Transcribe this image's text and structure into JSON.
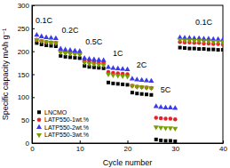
{
  "chart_data": {
    "type": "scatter",
    "x_label": "Cycle number",
    "y_label": "Specific capacity mAh g⁻¹",
    "x": [
      1,
      2,
      3,
      4,
      5,
      6,
      7,
      8,
      9,
      10,
      11,
      12,
      13,
      14,
      15,
      16,
      17,
      18,
      19,
      20,
      21,
      22,
      23,
      24,
      25,
      26,
      27,
      28,
      29,
      30,
      31,
      32,
      33,
      34,
      35,
      36,
      37,
      38,
      39,
      40
    ],
    "xlim": [
      0,
      40
    ],
    "xticks": [
      0,
      10,
      20,
      30,
      40
    ],
    "ylim": [
      0,
      300
    ],
    "yticks": [
      0,
      50,
      100,
      150,
      200,
      250,
      300
    ],
    "legend": "lower left",
    "series": [
      {
        "name": "LNCMO",
        "color": "#000000",
        "marker": "square",
        "values": [
          218,
          215,
          213,
          212,
          211,
          190,
          188,
          187,
          186,
          185,
          168,
          166,
          165,
          164,
          163,
          132,
          130,
          129,
          128,
          127,
          110,
          108,
          107,
          106,
          105,
          8,
          6,
          5,
          5,
          4,
          208,
          207,
          206,
          206,
          205,
          205,
          204,
          204,
          203,
          203
        ]
      },
      {
        "name": "LATP550-1wt.%",
        "color": "#e8202a",
        "marker": "circle",
        "values": [
          225,
          222,
          220,
          219,
          218,
          200,
          198,
          197,
          196,
          195,
          180,
          178,
          177,
          176,
          175,
          155,
          153,
          152,
          151,
          150,
          125,
          123,
          122,
          121,
          120,
          55,
          54,
          53,
          53,
          52,
          220,
          219,
          219,
          218,
          218,
          217,
          217,
          216,
          216,
          215
        ]
      },
      {
        "name": "LATP550-2wt.%",
        "color": "#3a3ae8",
        "marker": "triangle-up",
        "values": [
          235,
          232,
          230,
          229,
          228,
          205,
          203,
          202,
          201,
          200,
          185,
          183,
          182,
          181,
          180,
          165,
          163,
          162,
          161,
          160,
          140,
          138,
          137,
          136,
          135,
          80,
          78,
          77,
          77,
          76,
          230,
          229,
          229,
          228,
          228,
          227,
          227,
          226,
          226,
          225
        ]
      },
      {
        "name": "LATP550-3wt.%",
        "color": "#7a9e00",
        "marker": "triangle-down",
        "values": [
          225,
          222,
          220,
          219,
          218,
          198,
          196,
          195,
          194,
          193,
          175,
          173,
          172,
          171,
          170,
          150,
          148,
          147,
          146,
          145,
          125,
          123,
          122,
          121,
          120,
          35,
          34,
          33,
          33,
          32,
          225,
          224,
          224,
          223,
          223,
          222,
          222,
          221,
          221,
          220
        ]
      }
    ],
    "annotations": [
      {
        "text": "0.1C",
        "x": 2.5,
        "y": 262
      },
      {
        "text": "0.2C",
        "x": 8,
        "y": 240
      },
      {
        "text": "0.5C",
        "x": 13,
        "y": 215
      },
      {
        "text": "1C",
        "x": 18,
        "y": 190
      },
      {
        "text": "2C",
        "x": 23,
        "y": 165
      },
      {
        "text": "5C",
        "x": 28,
        "y": 110
      },
      {
        "text": "0.1C",
        "x": 36,
        "y": 258
      }
    ]
  }
}
